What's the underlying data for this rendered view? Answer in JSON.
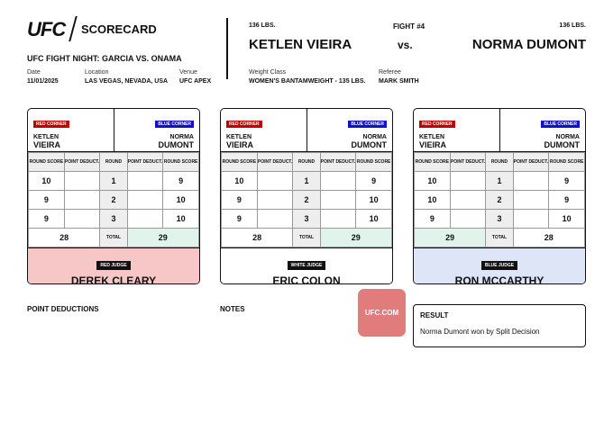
{
  "header": {
    "logo": "UFC",
    "title": "SCORECARD",
    "event": "UFC FIGHT NIGHT: GARCIA VS. ONAMA",
    "date_label": "Date",
    "date": "11/01/2025",
    "location_label": "Location",
    "location": "LAS VEGAS, NEVADA, USA",
    "venue_label": "Venue",
    "venue": "UFC APEX"
  },
  "fight": {
    "red_weight": "136 LBS.",
    "red_name": "KETLEN VIEIRA",
    "number": "FIGHT #4",
    "vs": "vs.",
    "blue_weight": "136 LBS.",
    "blue_name": "NORMA DUMONT",
    "weight_class_label": "Weight Class",
    "weight_class": "WOMEN'S BANTAMWEIGHT - 135 LBS.",
    "referee_label": "Referee",
    "referee": "MARK SMITH"
  },
  "labels": {
    "red_corner": "RED CORNER",
    "blue_corner": "BLUE CORNER",
    "red_first": "KETLEN",
    "red_last": "VIEIRA",
    "blue_first": "NORMA",
    "blue_last": "DUMONT",
    "round_score": "ROUND SCORE",
    "point_deduct": "POINT DEDUCT.",
    "round": "ROUND",
    "total": "TOTAL"
  },
  "cards": [
    {
      "judge_role": "RED JUDGE",
      "judge": "DEREK CLEARY",
      "bg": "#f7c6c6",
      "rounds": [
        {
          "r": "1",
          "red": "10",
          "blue": "9"
        },
        {
          "r": "2",
          "red": "9",
          "blue": "10"
        },
        {
          "r": "3",
          "red": "9",
          "blue": "10"
        }
      ],
      "red_total": "28",
      "blue_total": "29",
      "winner": "blue"
    },
    {
      "judge_role": "WHITE JUDGE",
      "judge": "ERIC COLON",
      "bg": "#ffffff",
      "rounds": [
        {
          "r": "1",
          "red": "10",
          "blue": "9"
        },
        {
          "r": "2",
          "red": "9",
          "blue": "10"
        },
        {
          "r": "3",
          "red": "9",
          "blue": "10"
        }
      ],
      "red_total": "28",
      "blue_total": "29",
      "winner": "blue"
    },
    {
      "judge_role": "BLUE JUDGE",
      "judge": "RON MCCARTHY",
      "bg": "#dde5f7",
      "rounds": [
        {
          "r": "1",
          "red": "10",
          "blue": "9"
        },
        {
          "r": "2",
          "red": "10",
          "blue": "9"
        },
        {
          "r": "3",
          "red": "9",
          "blue": "10"
        }
      ],
      "red_total": "29",
      "blue_total": "28",
      "winner": "red"
    }
  ],
  "colors": {
    "red_tag": "#c00000",
    "blue_tag": "#1010c8",
    "win_fill": "#e0f4ec"
  },
  "footer": {
    "point_deductions": "POINT DEDUCTIONS",
    "notes": "NOTES",
    "site": "UFC.COM",
    "result_label": "RESULT",
    "result": "Norma Dumont won by Split Decision"
  }
}
